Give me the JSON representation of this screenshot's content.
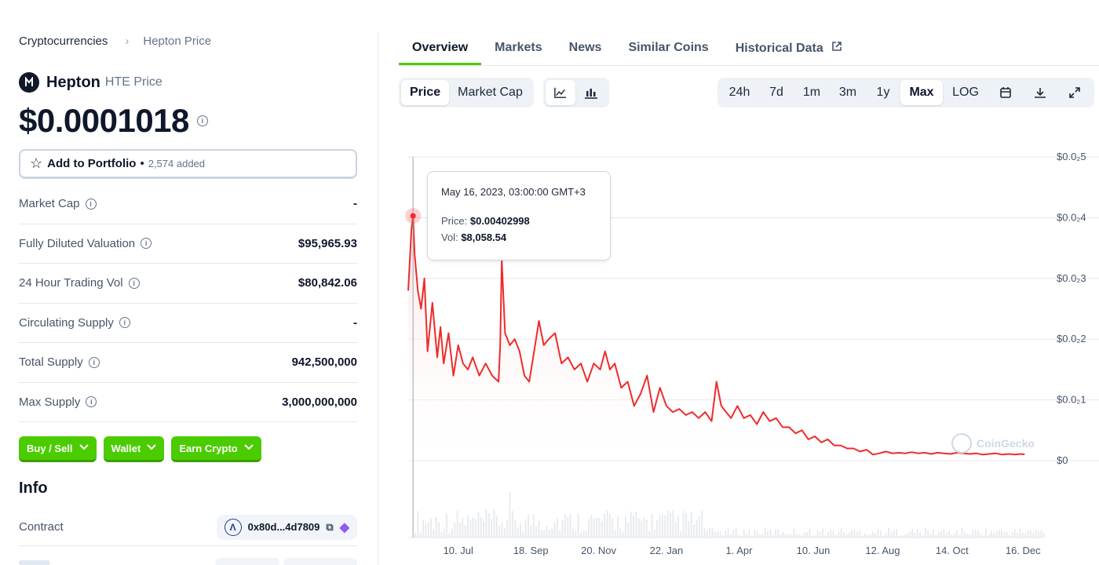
{
  "breadcrumb": {
    "root": "Cryptocurrencies",
    "separator": "›",
    "current": "Hepton Price"
  },
  "coin": {
    "name": "Hepton",
    "symbol_label": "HTE Price",
    "price": "$0.0001018"
  },
  "portfolio": {
    "label": "Add to Portfolio",
    "dot": "•",
    "count": "2,574 added"
  },
  "stats": [
    {
      "label": "Market Cap",
      "value": "-"
    },
    {
      "label": "Fully Diluted Valuation",
      "value": "$95,965.93"
    },
    {
      "label": "24 Hour Trading Vol",
      "value": "$80,842.06"
    },
    {
      "label": "Circulating Supply",
      "value": "-"
    },
    {
      "label": "Total Supply",
      "value": "942,500,000"
    },
    {
      "label": "Max Supply",
      "value": "3,000,000,000"
    }
  ],
  "actions": {
    "buy_sell": "Buy / Sell",
    "wallet": "Wallet",
    "earn": "Earn Crypto"
  },
  "info": {
    "title": "Info",
    "contract_label": "Contract",
    "contract_address": "0x80d...4d7809"
  },
  "tabs": [
    "Overview",
    "Markets",
    "News",
    "Similar Coins",
    "Historical Data"
  ],
  "chart_toggle": {
    "price": "Price",
    "market_cap": "Market Cap"
  },
  "ranges": [
    "24h",
    "7d",
    "1m",
    "3m",
    "1y",
    "Max"
  ],
  "log_label": "LOG",
  "tooltip": {
    "date": "May 16, 2023, 03:00:00 GMT+3",
    "price_label": "Price:",
    "price_value": "$0.00402998",
    "vol_label": "Vol:",
    "vol_value": "$8,058.54"
  },
  "watermark": "CoinGecko",
  "colors": {
    "accent": "#4bcc00",
    "line": "#ef2b2b",
    "fill": "#fde2e2"
  },
  "chart_data": {
    "type": "area",
    "y_tick_labels": [
      "$0.0₂5",
      "$0.0₂4",
      "$0.0₂3",
      "$0.0₂2",
      "$0.0₂1",
      "$0"
    ],
    "y_tick_values": [
      0.005,
      0.004,
      0.003,
      0.002,
      0.001,
      0
    ],
    "ylim": [
      0,
      0.005
    ],
    "x_tick_labels": [
      "10. Jul",
      "18. Sep",
      "20. Nov",
      "22. Jan",
      "1. Apr",
      "10. Jun",
      "12. Aug",
      "14. Oct",
      "16. Dec"
    ],
    "x_tick_positions": [
      1.55,
      3.8,
      5.9,
      8.0,
      10.25,
      12.55,
      14.7,
      16.85,
      19.05
    ],
    "xlim": [
      0,
      19.7
    ],
    "grid": true,
    "x": [
      0,
      0.1,
      0.15,
      0.2,
      0.3,
      0.4,
      0.5,
      0.6,
      0.75,
      0.9,
      1.0,
      1.1,
      1.25,
      1.4,
      1.55,
      1.7,
      1.85,
      2.0,
      2.2,
      2.4,
      2.6,
      2.8,
      2.85,
      2.9,
      3.0,
      3.15,
      3.3,
      3.45,
      3.6,
      3.75,
      3.9,
      4.05,
      4.2,
      4.35,
      4.55,
      4.75,
      4.95,
      5.15,
      5.35,
      5.55,
      5.75,
      5.95,
      6.1,
      6.25,
      6.4,
      6.6,
      6.8,
      7.0,
      7.2,
      7.4,
      7.6,
      7.8,
      8.0,
      8.2,
      8.4,
      8.6,
      8.8,
      9.0,
      9.2,
      9.4,
      9.55,
      9.7,
      9.85,
      10.0,
      10.2,
      10.4,
      10.6,
      10.8,
      11.0,
      11.2,
      11.4,
      11.6,
      11.8,
      12.0,
      12.2,
      12.4,
      12.6,
      12.8,
      13.0,
      13.2,
      13.4,
      13.6,
      13.8,
      14.0,
      14.2,
      14.4,
      14.6,
      14.8,
      15.0,
      15.2,
      15.4,
      15.6,
      15.8,
      16.0,
      16.2,
      16.4,
      16.6,
      16.8,
      17.0,
      17.2,
      17.4,
      17.6,
      17.8,
      18.0,
      18.2,
      18.4,
      18.6,
      18.8,
      19.0,
      19.1
    ],
    "y": [
      0.0028,
      0.0038,
      0.00403,
      0.0034,
      0.0028,
      0.0025,
      0.003,
      0.0018,
      0.0026,
      0.0017,
      0.0022,
      0.0016,
      0.0021,
      0.0014,
      0.0019,
      0.0016,
      0.0015,
      0.0017,
      0.0014,
      0.0016,
      0.0014,
      0.0013,
      0.0019,
      0.0033,
      0.0021,
      0.0019,
      0.002,
      0.0018,
      0.0014,
      0.0013,
      0.0018,
      0.0023,
      0.0019,
      0.002,
      0.0021,
      0.0016,
      0.0017,
      0.0015,
      0.0016,
      0.0013,
      0.0016,
      0.0015,
      0.0018,
      0.0015,
      0.0016,
      0.0012,
      0.0013,
      0.0009,
      0.0011,
      0.0014,
      0.0008,
      0.0012,
      0.0009,
      0.0008,
      0.00085,
      0.00075,
      0.0008,
      0.0007,
      0.0008,
      0.00065,
      0.0013,
      0.0009,
      0.0008,
      0.0007,
      0.0009,
      0.0007,
      0.00075,
      0.0006,
      0.0008,
      0.00065,
      0.0007,
      0.00055,
      0.00055,
      0.00045,
      0.0005,
      0.00035,
      0.0004,
      0.0003,
      0.00035,
      0.00025,
      0.00025,
      0.0002,
      0.0002,
      0.00015,
      0.00018,
      0.0001,
      0.00012,
      0.00015,
      0.00012,
      0.00013,
      0.00012,
      0.00014,
      0.00012,
      0.00013,
      0.00011,
      0.00013,
      0.00012,
      0.00011,
      0.00013,
      0.00012,
      0.00011,
      0.00012,
      0.0001,
      0.00011,
      0.00012,
      0.0001,
      0.00011,
      0.0001,
      0.00011,
      0.0001018
    ],
    "highlight": {
      "x": 0.15,
      "y": 0.00403
    }
  }
}
